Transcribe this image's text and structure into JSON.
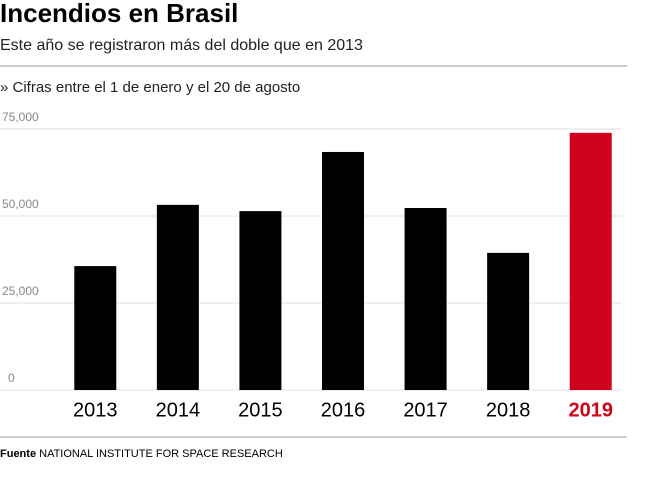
{
  "chart_data": {
    "type": "bar",
    "title": "Incendios en Brasil",
    "subtitle": "Este año se registraron más del doble que en 2013",
    "note": "» Cifras entre el 1 de enero y el 20 de agosto",
    "source_label": "Fuente",
    "source": "NATIONAL INSTITUTE FOR SPACE RESEARCH",
    "categories": [
      "2013",
      "2014",
      "2015",
      "2016",
      "2017",
      "2018",
      "2019"
    ],
    "values": [
      35600,
      53200,
      51400,
      68400,
      52300,
      39400,
      73900
    ],
    "colors": [
      "#000000",
      "#000000",
      "#000000",
      "#000000",
      "#000000",
      "#000000",
      "#d0021b"
    ],
    "ylim": [
      0,
      75000
    ],
    "yticks": [
      0,
      {
        "value": 25000,
        "label": "25,000"
      },
      {
        "value": 50000,
        "label": "50,000"
      },
      {
        "value": 75000,
        "label": "75,000"
      }
    ],
    "grid": true
  }
}
